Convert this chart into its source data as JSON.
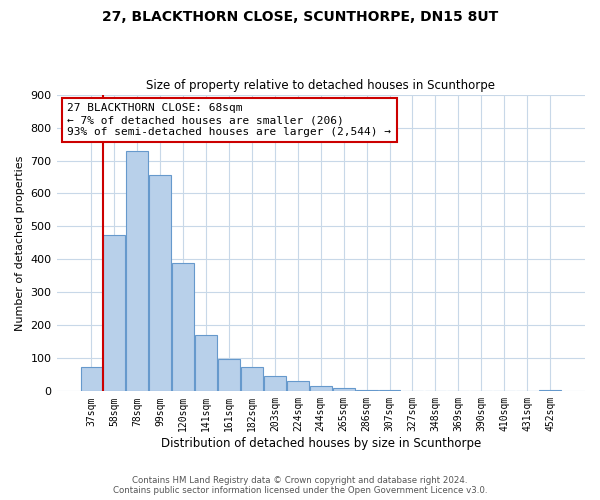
{
  "title": "27, BLACKTHORN CLOSE, SCUNTHORPE, DN15 8UT",
  "subtitle": "Size of property relative to detached houses in Scunthorpe",
  "xlabel": "Distribution of detached houses by size in Scunthorpe",
  "ylabel": "Number of detached properties",
  "bar_labels": [
    "37sqm",
    "58sqm",
    "78sqm",
    "99sqm",
    "120sqm",
    "141sqm",
    "161sqm",
    "182sqm",
    "203sqm",
    "224sqm",
    "244sqm",
    "265sqm",
    "286sqm",
    "307sqm",
    "327sqm",
    "348sqm",
    "369sqm",
    "390sqm",
    "410sqm",
    "431sqm",
    "452sqm"
  ],
  "bar_values": [
    75,
    475,
    730,
    655,
    390,
    170,
    97,
    75,
    45,
    32,
    15,
    10,
    5,
    3,
    2,
    1,
    1,
    0,
    0,
    0,
    5
  ],
  "bar_color": "#b8d0ea",
  "bar_edge_color": "#6699cc",
  "vline_color": "#cc0000",
  "annotation_text": "27 BLACKTHORN CLOSE: 68sqm\n← 7% of detached houses are smaller (206)\n93% of semi-detached houses are larger (2,544) →",
  "annotation_box_edge_color": "#cc0000",
  "ylim": [
    0,
    900
  ],
  "yticks": [
    0,
    100,
    200,
    300,
    400,
    500,
    600,
    700,
    800,
    900
  ],
  "footer_line1": "Contains HM Land Registry data © Crown copyright and database right 2024.",
  "footer_line2": "Contains public sector information licensed under the Open Government Licence v3.0.",
  "bg_color": "#ffffff",
  "grid_color": "#c8d8e8"
}
